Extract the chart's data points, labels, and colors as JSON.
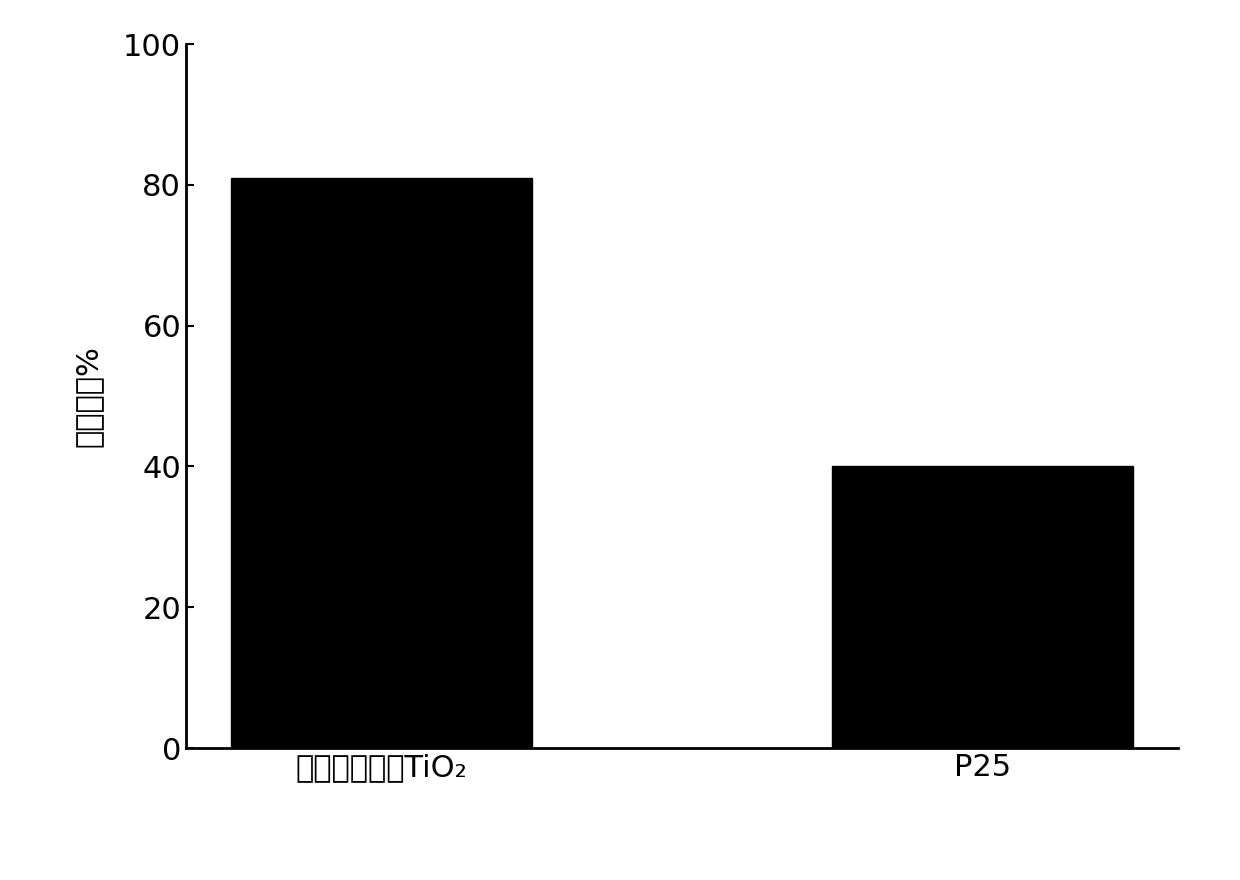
{
  "categories": [
    "混晶多孔复合TiO₂",
    "P25"
  ],
  "values": [
    81,
    40
  ],
  "bar_color": "#000000",
  "ylabel_chinese": "去除率",
  "ylabel_symbol": "／%",
  "ylim": [
    0,
    100
  ],
  "yticks": [
    0,
    20,
    40,
    60,
    80,
    100
  ],
  "bar_width": 0.5,
  "background_color": "#ffffff",
  "ytick_fontsize": 22,
  "xlabel_fontsize": 22,
  "ylabel_fontsize": 22,
  "figure_width": 12.4,
  "figure_height": 8.8,
  "dpi": 100
}
